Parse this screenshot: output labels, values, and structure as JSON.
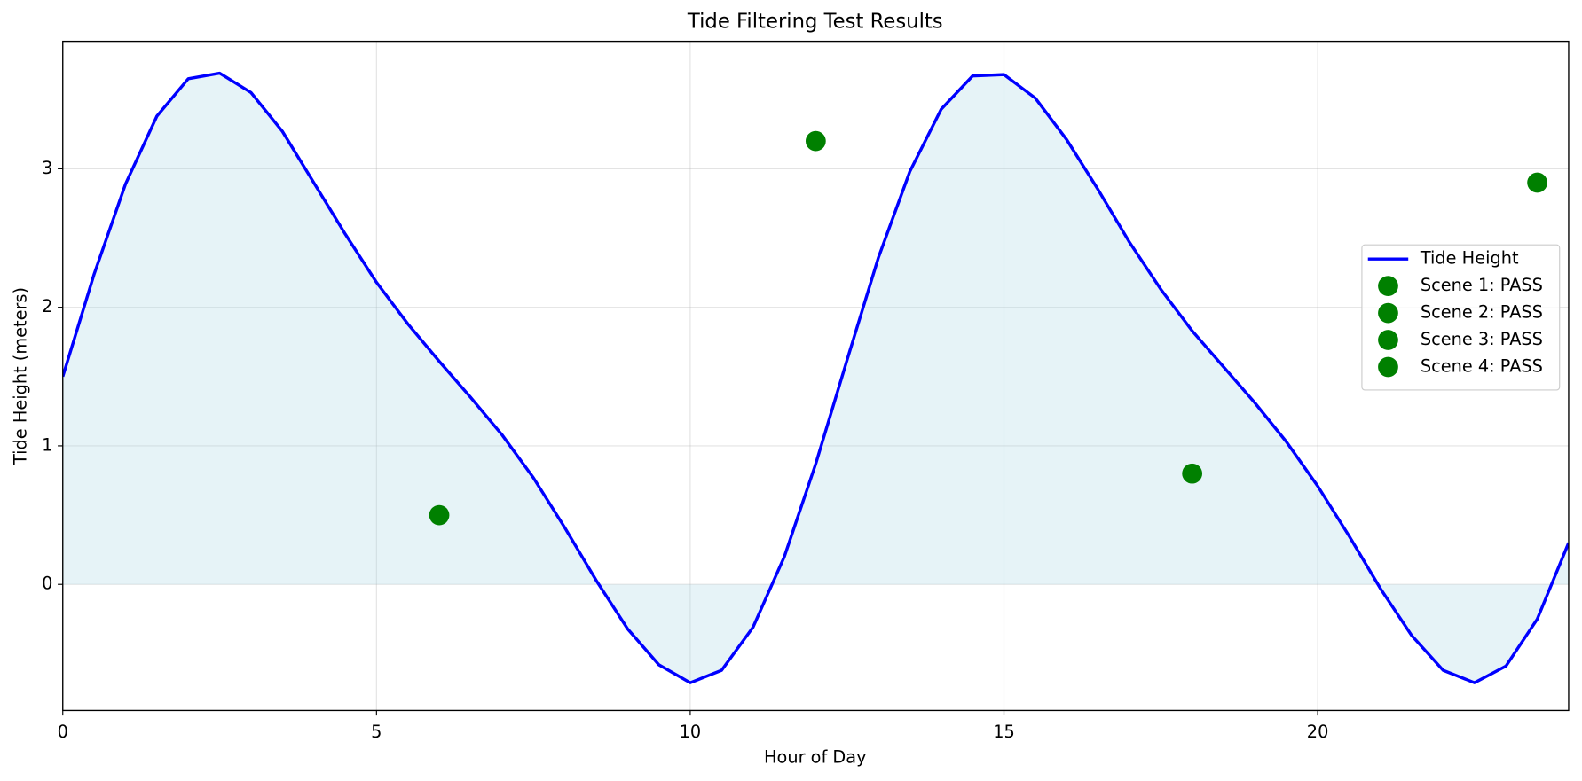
{
  "chart_data": {
    "type": "line",
    "title": "Tide Filtering Test Results",
    "xlabel": "Hour of Day",
    "ylabel": "Tide Height (meters)",
    "xlim": [
      0,
      24
    ],
    "ylim": [
      -0.91,
      3.92
    ],
    "xticks": [
      0,
      5,
      10,
      15,
      20
    ],
    "yticks": [
      0,
      1,
      2,
      3
    ],
    "grid": true,
    "legend": "right",
    "fill_color": "#add8e6",
    "series": [
      {
        "name": "Tide Height",
        "type": "line",
        "color": "#0000ff",
        "x": [
          0,
          0.5,
          1,
          1.5,
          2,
          2.5,
          3,
          3.5,
          4,
          4.5,
          5,
          5.5,
          6,
          6.5,
          7,
          7.5,
          8,
          8.5,
          9,
          9.5,
          10,
          10.5,
          11,
          11.5,
          12,
          12.5,
          13,
          13.5,
          14,
          14.5,
          15,
          15.5,
          16,
          16.5,
          17,
          17.5,
          18,
          18.5,
          19,
          19.5,
          20,
          20.5,
          21,
          21.5,
          22,
          22.5,
          23,
          23.5,
          24
        ],
        "values": [
          1.5,
          2.24,
          2.89,
          3.38,
          3.65,
          3.69,
          3.55,
          3.27,
          2.9,
          2.53,
          2.18,
          1.88,
          1.61,
          1.35,
          1.08,
          0.77,
          0.41,
          0.03,
          -0.32,
          -0.58,
          -0.71,
          -0.62,
          -0.31,
          0.2,
          0.87,
          1.62,
          2.36,
          2.98,
          3.43,
          3.67,
          3.68,
          3.51,
          3.21,
          2.85,
          2.47,
          2.13,
          1.83,
          1.57,
          1.31,
          1.03,
          0.71,
          0.35,
          -0.03,
          -0.37,
          -0.62,
          -0.71,
          -0.59,
          -0.25,
          0.3
        ]
      },
      {
        "name": "Scene 1: PASS",
        "type": "scatter",
        "color": "#008000",
        "x": [
          6
        ],
        "values": [
          0.5
        ]
      },
      {
        "name": "Scene 2: PASS",
        "type": "scatter",
        "color": "#008000",
        "x": [
          12
        ],
        "values": [
          3.2
        ]
      },
      {
        "name": "Scene 3: PASS",
        "type": "scatter",
        "color": "#008000",
        "x": [
          18
        ],
        "values": [
          0.8
        ]
      },
      {
        "name": "Scene 4: PASS",
        "type": "scatter",
        "color": "#008000",
        "x": [
          23.5
        ],
        "values": [
          2.9
        ]
      }
    ]
  }
}
